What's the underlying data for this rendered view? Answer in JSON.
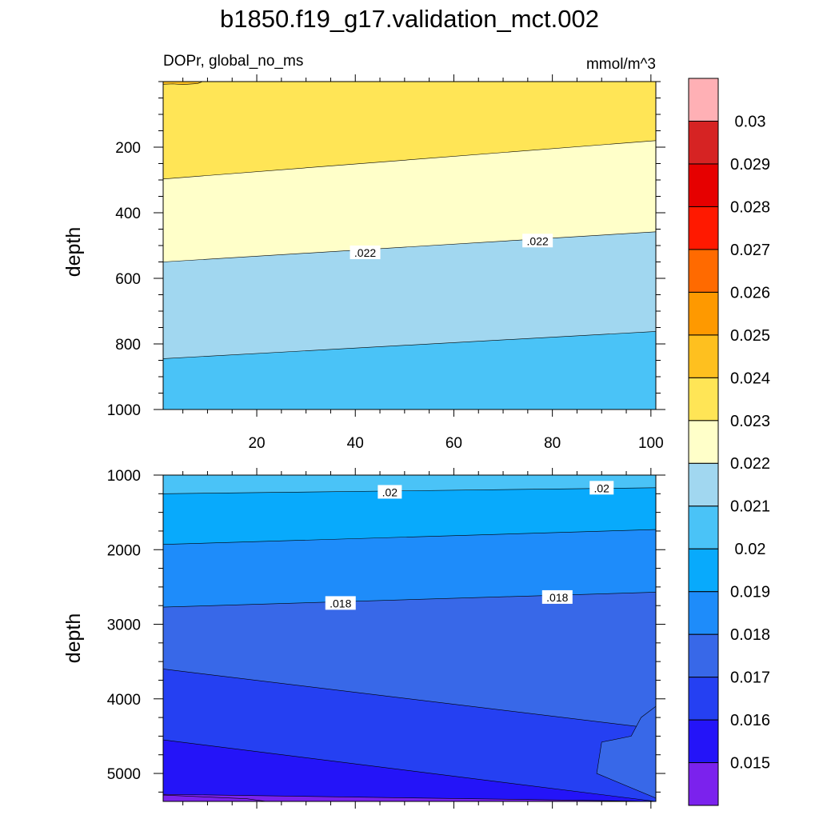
{
  "title": "b1850.f19_g17.validation_mct.002",
  "chart_data": {
    "type": "contour",
    "variable": "DOPr, global_no_ms",
    "units": "mmol/m^3",
    "panels": [
      {
        "ylabel": "depth",
        "ylim": [
          0,
          1000
        ],
        "y_reversed": true,
        "xlim": [
          1,
          101
        ],
        "x_ticks": [
          20,
          40,
          60,
          80,
          100
        ],
        "y_ticks": [
          200,
          400,
          600,
          800,
          1000
        ],
        "regions": [
          {
            "level": "0.024-0.025",
            "color": "#fec01f",
            "poly": [
              [
                1,
                0
              ],
              [
                9,
                0
              ],
              [
                8,
                6
              ],
              [
                5,
                9
              ],
              [
                3,
                7
              ],
              [
                1,
                8
              ]
            ]
          },
          {
            "level": "0.023-0.024",
            "color": "#ffe556",
            "boundary_depth_x1": 297,
            "boundary_depth_x101": 180
          },
          {
            "level": "0.022-0.023",
            "color": "#ffffc9",
            "boundary_depth_x1": 550,
            "boundary_depth_x101": 458
          },
          {
            "level": "0.021-0.022",
            "color": "#a1d7f0",
            "boundary_depth_x1": 845,
            "boundary_depth_x101": 762
          },
          {
            "level": "0.020-0.021",
            "color": "#4ac3f7"
          }
        ],
        "contour_labels": [
          {
            "text": ".022",
            "x": 42,
            "depth": 522
          },
          {
            "text": ".022",
            "x": 77,
            "depth": 486
          }
        ]
      },
      {
        "ylabel": "depth",
        "ylim": [
          1000,
          5375
        ],
        "y_reversed": true,
        "xlim": [
          1,
          101
        ],
        "x_ticks": [
          20,
          40,
          60,
          80,
          100
        ],
        "y_ticks": [
          1000,
          2000,
          3000,
          4000,
          5000
        ],
        "regions": [
          {
            "level": "0.020-0.021",
            "color": "#4ac3f7",
            "boundary_depth_x1": 1250,
            "boundary_depth_x101": 1170
          },
          {
            "level": "0.019-0.020",
            "color": "#08aafc",
            "boundary_depth_x1": 1930,
            "boundary_depth_x101": 1730
          },
          {
            "level": "0.018-0.019",
            "color": "#1e8cfa",
            "boundary_depth_x1": 2770,
            "boundary_depth_x101": 2570
          },
          {
            "level": "0.017-0.018",
            "color": "#3868e8",
            "boundary_depth_x1": 3600,
            "boundary_depth_x101": 4400
          },
          {
            "level": "0.016-0.017",
            "color": "#2540f2",
            "boundary_depth_x1": 4550,
            "boundary_depth_x101": 5375
          },
          {
            "level": "0.015-0.016",
            "color": "#2414f8",
            "boundary_depth_x1": 5280,
            "boundary_depth_x101": 5375
          },
          {
            "level": "<0.015",
            "color": "#7b22ed"
          }
        ],
        "contour_labels": [
          {
            "text": ".02",
            "x": 47,
            "depth": 1230
          },
          {
            "text": ".02",
            "x": 90,
            "depth": 1175
          },
          {
            "text": ".018",
            "x": 37,
            "depth": 2720
          },
          {
            "text": ".018",
            "x": 81,
            "depth": 2640
          }
        ]
      }
    ],
    "colorbar": {
      "colors": [
        "#7b22ed",
        "#2414f8",
        "#2540f2",
        "#3868e8",
        "#1e8cfa",
        "#08aafc",
        "#4ac3f7",
        "#a1d7f0",
        "#ffffc9",
        "#ffe556",
        "#fec01f",
        "#fe9900",
        "#ff6a00",
        "#ff1900",
        "#e60000",
        "#d62323",
        "#ffb0b5"
      ],
      "labels": [
        "0.015",
        "0.016",
        "0.017",
        "0.018",
        "0.019",
        "0.02",
        "0.021",
        "0.022",
        "0.023",
        "0.024",
        "0.025",
        "0.026",
        "0.027",
        "0.028",
        "0.029",
        "0.03"
      ]
    }
  }
}
